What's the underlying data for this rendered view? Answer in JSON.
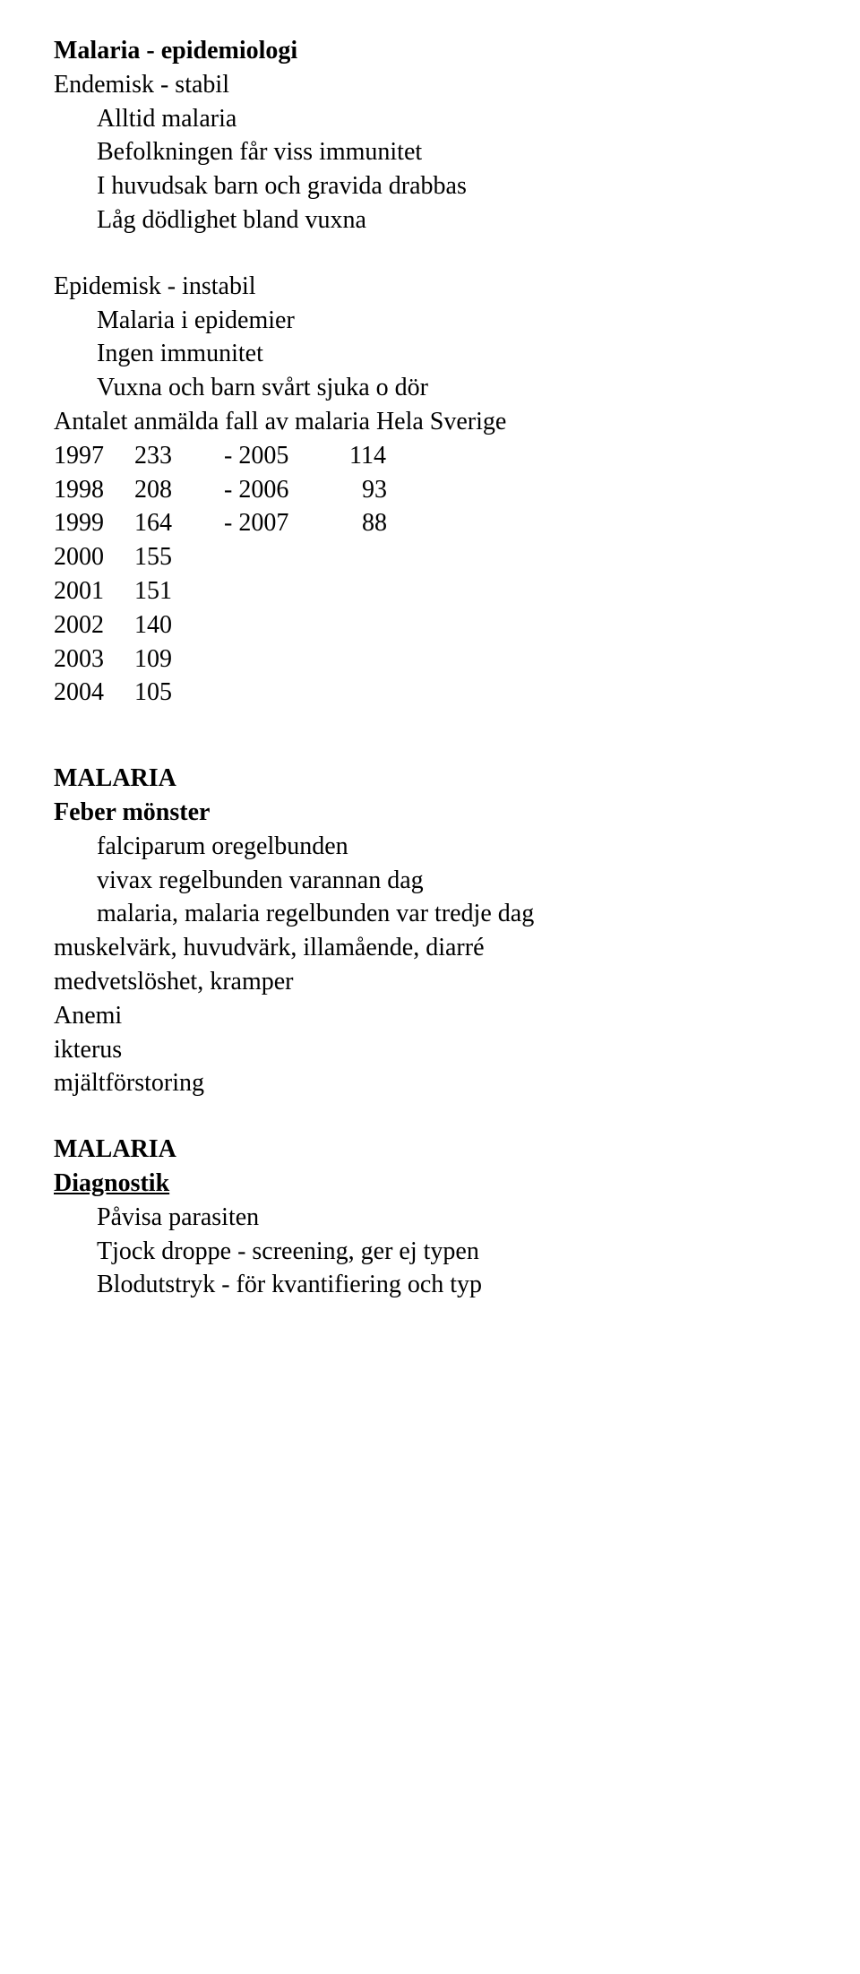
{
  "title": "Malaria - epidemiologi",
  "line2": "Endemisk - stabil",
  "line3": "Alltid malaria",
  "line4": "Befolkningen får viss immunitet",
  "line5": "I huvudsak barn och gravida drabbas",
  "line6": "Låg dödlighet bland vuxna",
  "line7": "Epidemisk - instabil",
  "line8": "Malaria i epidemier",
  "line9": "Ingen immunitet",
  "line10": "Vuxna och barn svårt sjuka o dör",
  "tableTitle": "Antalet anmälda fall av malaria  Hela Sverige",
  "tbl": {
    "rows": [
      {
        "y": "1997",
        "v": "233",
        "d": "- 2005",
        "v2": "114"
      },
      {
        "y": "1998",
        "v": "208",
        "d": "- 2006",
        "v2": "  93"
      },
      {
        "y": "1999",
        "v": "164",
        "d": "- 2007",
        "v2": "  88"
      },
      {
        "y": "2000",
        "v": "155",
        "d": "",
        "v2": ""
      },
      {
        "y": "2001",
        "v": "151",
        "d": "",
        "v2": ""
      },
      {
        "y": "2002",
        "v": "140",
        "d": "",
        "v2": ""
      },
      {
        "y": "2003",
        "v": "109",
        "d": "",
        "v2": ""
      },
      {
        "y": "2004",
        "v": "105",
        "d": "",
        "v2": ""
      }
    ]
  },
  "m1": "MALARIA",
  "fm": "Feber mönster",
  "fm1": "falciparum oregelbunden",
  "fm2": "vivax regelbunden varannan dag",
  "fm3": "malaria, malaria regelbunden var tredje dag",
  "s1": "muskelvärk, huvudvärk, illamående, diarré",
  "s2": "medvetslöshet, kramper",
  "s3": "Anemi",
  "s4": "ikterus",
  "s5": "mjältförstoring",
  "m2": "MALARIA",
  "diag": "Diagnostik",
  "d1": "Påvisa parasiten",
  "d2": "Tjock droppe - screening, ger ej typen",
  "d3": "Blodutstryk - för kvantifiering och typ"
}
